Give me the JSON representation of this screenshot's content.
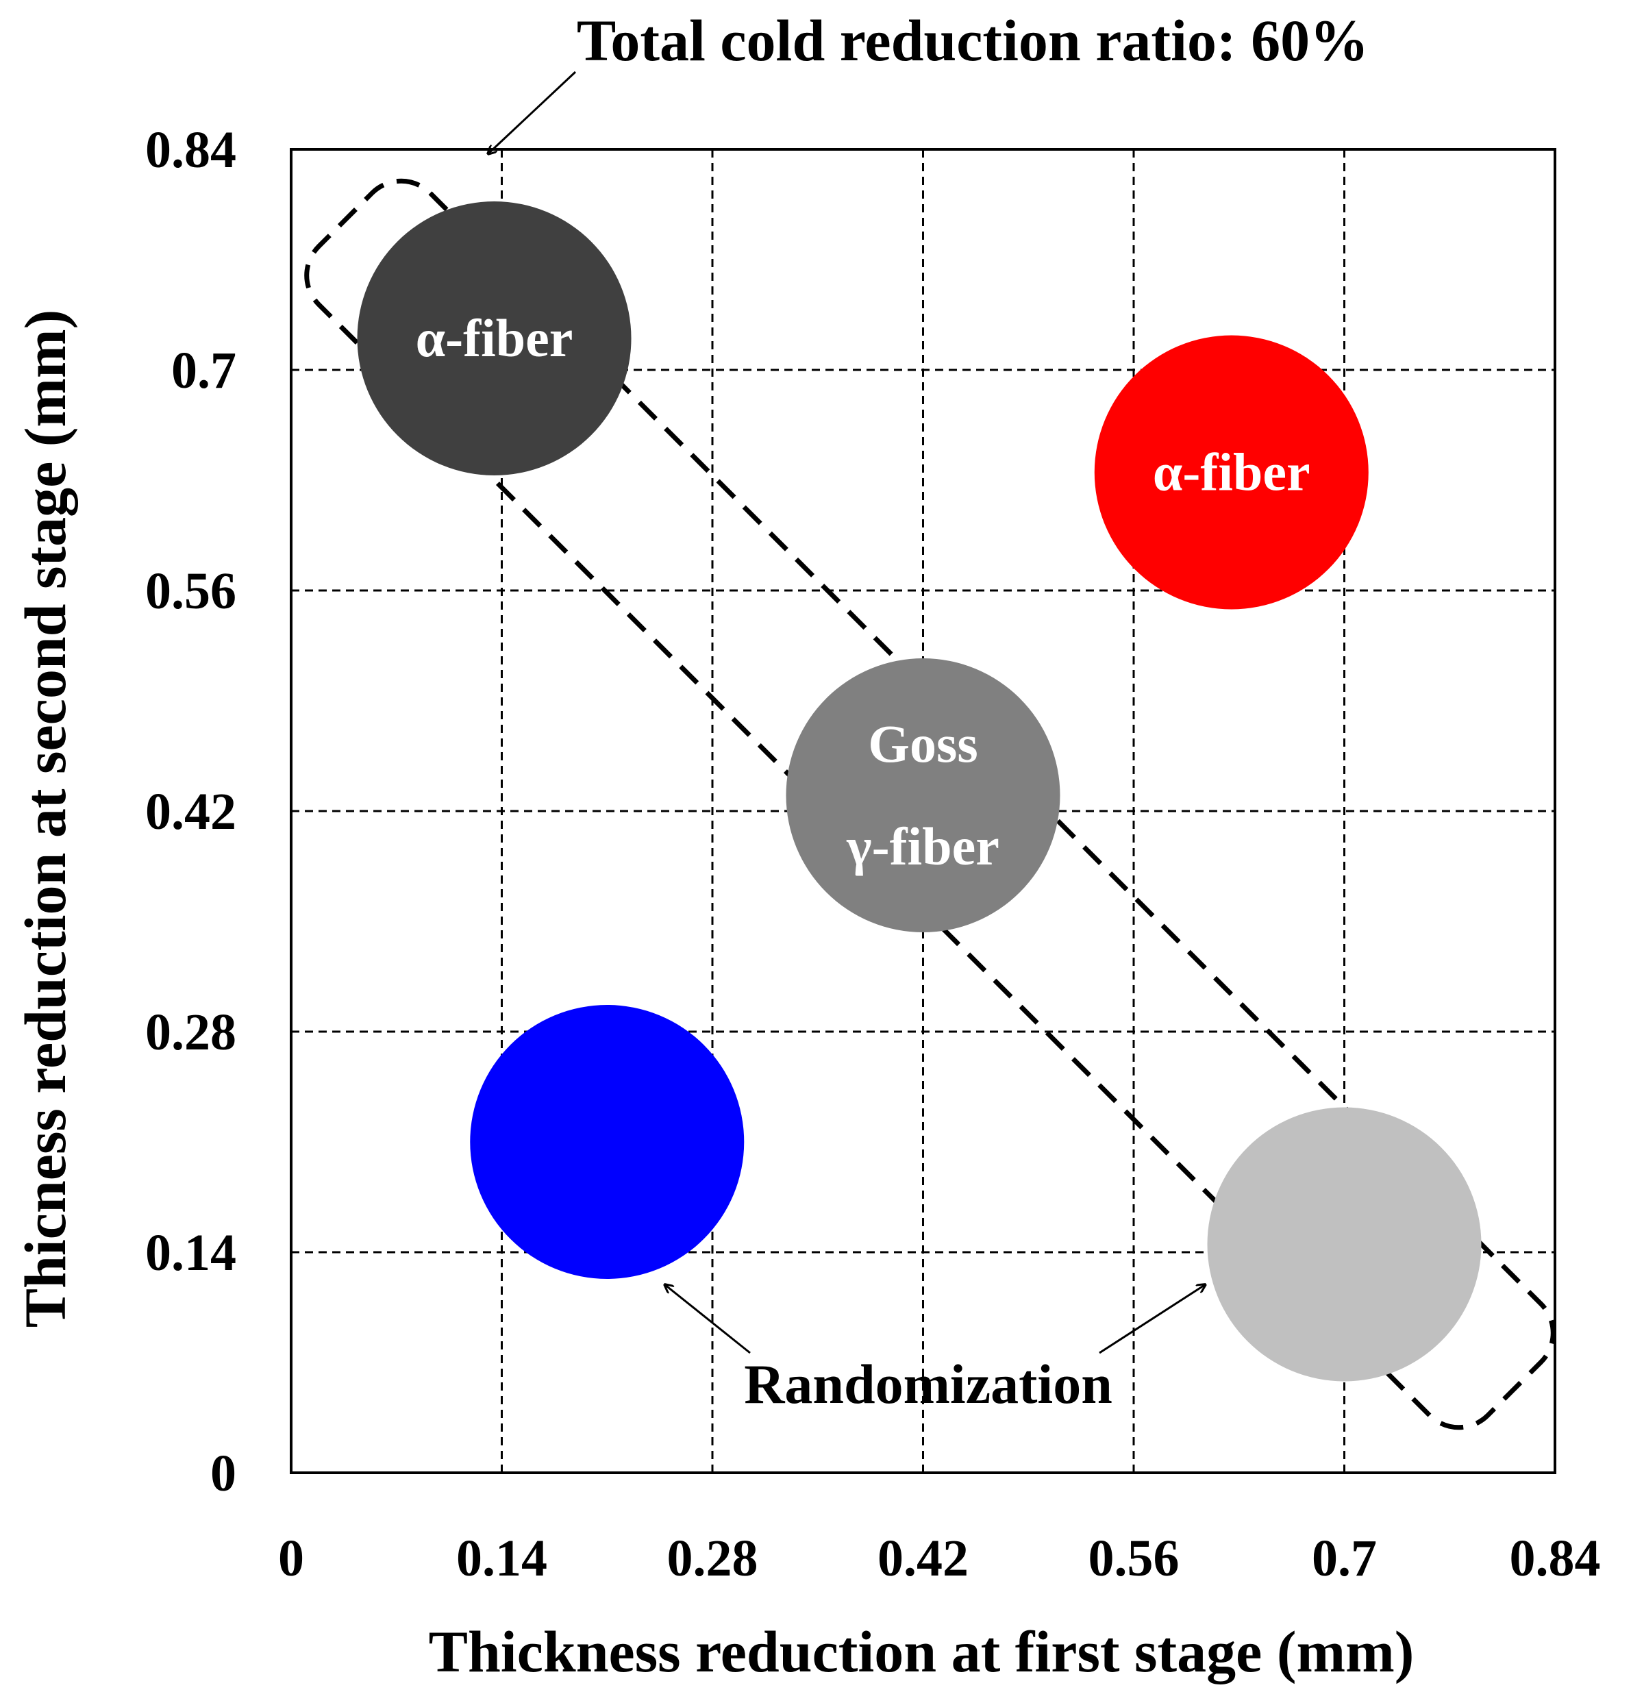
{
  "chart_data": {
    "type": "scatter",
    "title": "Total cold reduction ratio: 60%",
    "xlabel": "Thickness reduction at first stage (mm)",
    "ylabel": "Thicness reduction at second stage (mm)",
    "xlim": [
      0,
      0.84
    ],
    "ylim": [
      0,
      0.84
    ],
    "xticks": [
      "0",
      "0.14",
      "0.28",
      "0.42",
      "0.56",
      "0.7",
      "0.84"
    ],
    "yticks": [
      "0",
      "0.14",
      "0.28",
      "0.42",
      "0.56",
      "0.7",
      "0.84"
    ],
    "grid": true,
    "points": [
      {
        "x": 0.135,
        "y": 0.72,
        "labels": [
          "α-fiber"
        ],
        "color": "#404040",
        "label_color": "#ffffff"
      },
      {
        "x": 0.625,
        "y": 0.635,
        "labels": [
          "α-fiber"
        ],
        "color": "#ff0000",
        "label_color": "#ffffff"
      },
      {
        "x": 0.42,
        "y": 0.43,
        "labels": [
          "Goss",
          "γ-fiber"
        ],
        "color": "#808080",
        "label_color": "#ffffff"
      },
      {
        "x": 0.21,
        "y": 0.21,
        "labels": [],
        "color": "#0000ff",
        "label_color": "#ffffff"
      },
      {
        "x": 0.7,
        "y": 0.145,
        "labels": [],
        "color": "#c0c0c0",
        "label_color": "#ffffff"
      }
    ],
    "annotations": {
      "region_label": "Total cold reduction ratio: 60%",
      "arrow_label": "Randomization"
    }
  }
}
